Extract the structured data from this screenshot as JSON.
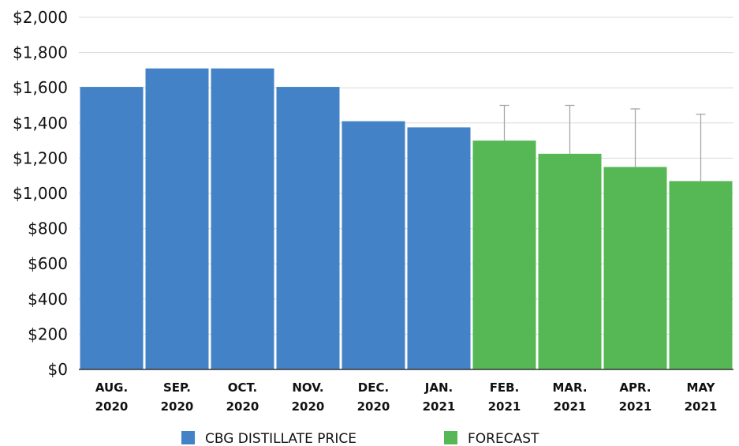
{
  "chart_data": {
    "type": "bar",
    "categories": [
      [
        "AUG.",
        "2020"
      ],
      [
        "SEP.",
        "2020"
      ],
      [
        "OCT.",
        "2020"
      ],
      [
        "NOV.",
        "2020"
      ],
      [
        "DEC.",
        "2020"
      ],
      [
        "JAN.",
        "2021"
      ],
      [
        "FEB.",
        "2021"
      ],
      [
        "MAR.",
        "2021"
      ],
      [
        "APR.",
        "2021"
      ],
      [
        "MAY",
        "2021"
      ]
    ],
    "series": [
      {
        "name": "CBG DISTILLATE PRICE",
        "color": "#4382c6",
        "values": [
          1605,
          1710,
          1710,
          1605,
          1410,
          1375,
          null,
          null,
          null,
          null
        ]
      },
      {
        "name": "FORECAST",
        "color": "#55b855",
        "values": [
          null,
          null,
          null,
          null,
          null,
          null,
          1300,
          1225,
          1150,
          1070
        ],
        "error_upper": [
          null,
          null,
          null,
          null,
          null,
          null,
          1500,
          1500,
          1480,
          1450
        ]
      }
    ],
    "ylim": [
      0,
      2000
    ],
    "yticks": [
      0,
      200,
      400,
      600,
      800,
      1000,
      1200,
      1400,
      1600,
      1800,
      2000
    ],
    "ytick_prefix": "$",
    "grid": true,
    "legend_position": "bottom"
  }
}
